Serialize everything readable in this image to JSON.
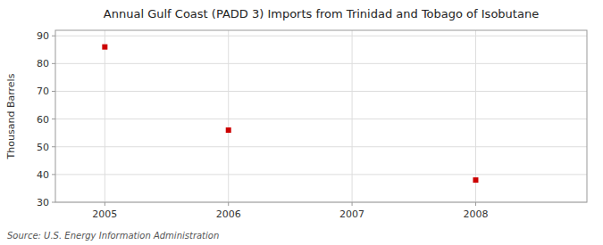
{
  "chart_data": {
    "type": "scatter",
    "title": "Annual Gulf Coast (PADD 3) Imports from Trinidad and Tobago of Isobutane",
    "ylabel": "Thousand Barrels",
    "source": "Source: U.S. Energy Information Administration",
    "x": [
      2005,
      2006,
      2008
    ],
    "values": [
      86,
      56,
      38
    ],
    "color": "#cc0000",
    "marker": "square",
    "xlim": [
      2004.6,
      2008.9
    ],
    "ylim": [
      30,
      92
    ],
    "xticks": [
      2005,
      2006,
      2007,
      2008
    ],
    "yticks": [
      30,
      40,
      50,
      60,
      70,
      80,
      90
    ],
    "grid": true
  }
}
